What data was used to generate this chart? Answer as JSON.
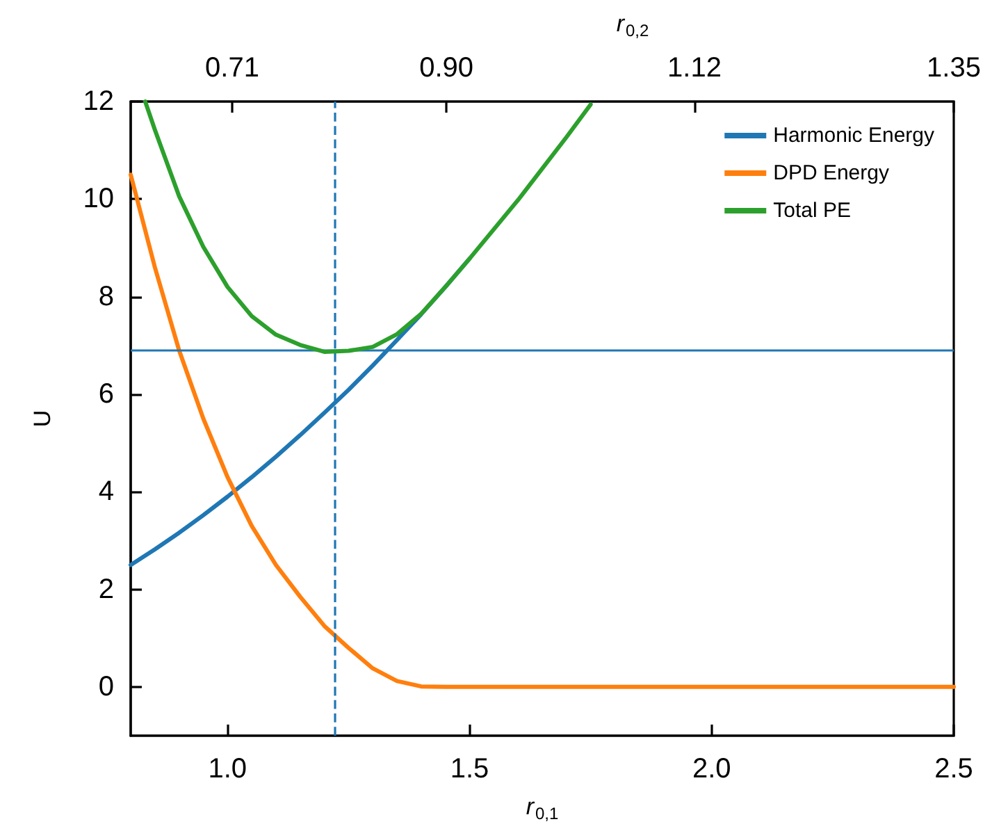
{
  "chart_data": {
    "type": "line",
    "xlabel": "r$_{0,1}$",
    "x2label": "r$_{0,2}$",
    "ylabel": "U",
    "xlim": [
      0.8,
      2.5
    ],
    "xticks": [
      {
        "value": 1,
        "label": "1.0"
      },
      1.5,
      {
        "value": 2,
        "label": "2.0"
      },
      2.5
    ],
    "x2lim": [
      0.62,
      1.35
    ],
    "x2ticks": [
      0.71,
      {
        "value": 0.9,
        "label": "0.90"
      },
      1.12,
      1.35
    ],
    "ylim": [
      -1,
      12
    ],
    "yticks": [
      0,
      2,
      4,
      6,
      8,
      10,
      12
    ],
    "grid": false,
    "legend": "top right",
    "marker": "none",
    "line_style": "solid",
    "series": [
      {
        "name": "Harmonic Energy",
        "color": "#1f77b4",
        "x": [
          0.8,
          0.85,
          0.9,
          0.95,
          1.0,
          1.05,
          1.1,
          1.15,
          1.2,
          1.25,
          1.3,
          1.35,
          1.4,
          1.45,
          1.5
        ],
        "values": [
          2.5,
          2.82,
          3.16,
          3.52,
          3.9,
          4.3,
          4.72,
          5.16,
          5.62,
          6.09,
          6.59,
          7.11,
          7.64,
          8.2,
          8.78
        ]
      },
      {
        "name": "DPD Energy",
        "color": "#ff7f0e",
        "x": [
          0.8,
          0.85,
          0.9,
          0.95,
          1.0,
          1.05,
          1.1,
          1.15,
          1.2,
          1.25,
          1.3,
          1.35,
          1.4,
          1.45,
          1.5,
          2.0,
          2.5
        ],
        "values": [
          10.5,
          8.6,
          6.9,
          5.5,
          4.3,
          3.3,
          2.5,
          1.85,
          1.25,
          0.8,
          0.38,
          0.12,
          0.01,
          0,
          0,
          0,
          0
        ]
      },
      {
        "name": "Total PE",
        "color": "#2ca02c",
        "x": [
          0.83,
          0.85,
          0.9,
          0.95,
          1.0,
          1.05,
          1.1,
          1.15,
          1.2,
          1.25,
          1.3,
          1.35,
          1.4,
          1.45,
          1.5,
          1.6,
          1.7,
          1.75
        ],
        "values": [
          12.0,
          11.42,
          10.06,
          9.02,
          8.2,
          7.6,
          7.22,
          7.01,
          6.87,
          6.89,
          6.97,
          7.23,
          7.65,
          8.2,
          8.78,
          9.98,
          11.27,
          11.94
        ]
      }
    ],
    "ref_lines": [
      {
        "axis": "y",
        "value": 6.9,
        "label": null,
        "color": "#1f77b4",
        "line_style": "solid"
      },
      {
        "axis": "x",
        "value": 1.22,
        "label": null,
        "color": "#1f77b4",
        "line_style": "dashed"
      }
    ]
  }
}
